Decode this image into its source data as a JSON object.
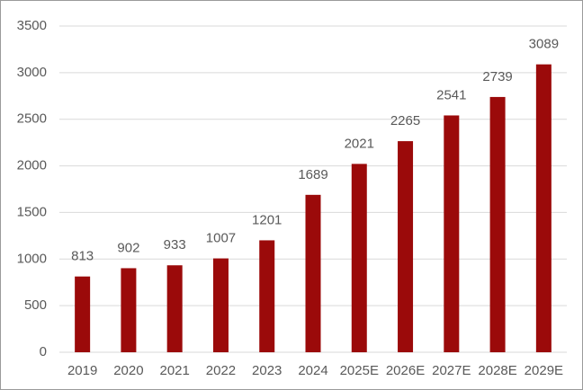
{
  "chart_data": {
    "type": "bar",
    "categories": [
      "2019",
      "2020",
      "2021",
      "2022",
      "2023",
      "2024",
      "2025E",
      "2026E",
      "2027E",
      "2028E",
      "2029E"
    ],
    "values": [
      813,
      902,
      933,
      1007,
      1201,
      1689,
      2021,
      2265,
      2541,
      2739,
      3089
    ],
    "color": "#9b0a0a",
    "ylim": [
      0,
      3500
    ],
    "yticks": [
      0,
      500,
      1000,
      1500,
      2000,
      2500,
      3000,
      3500
    ],
    "grid": true
  }
}
